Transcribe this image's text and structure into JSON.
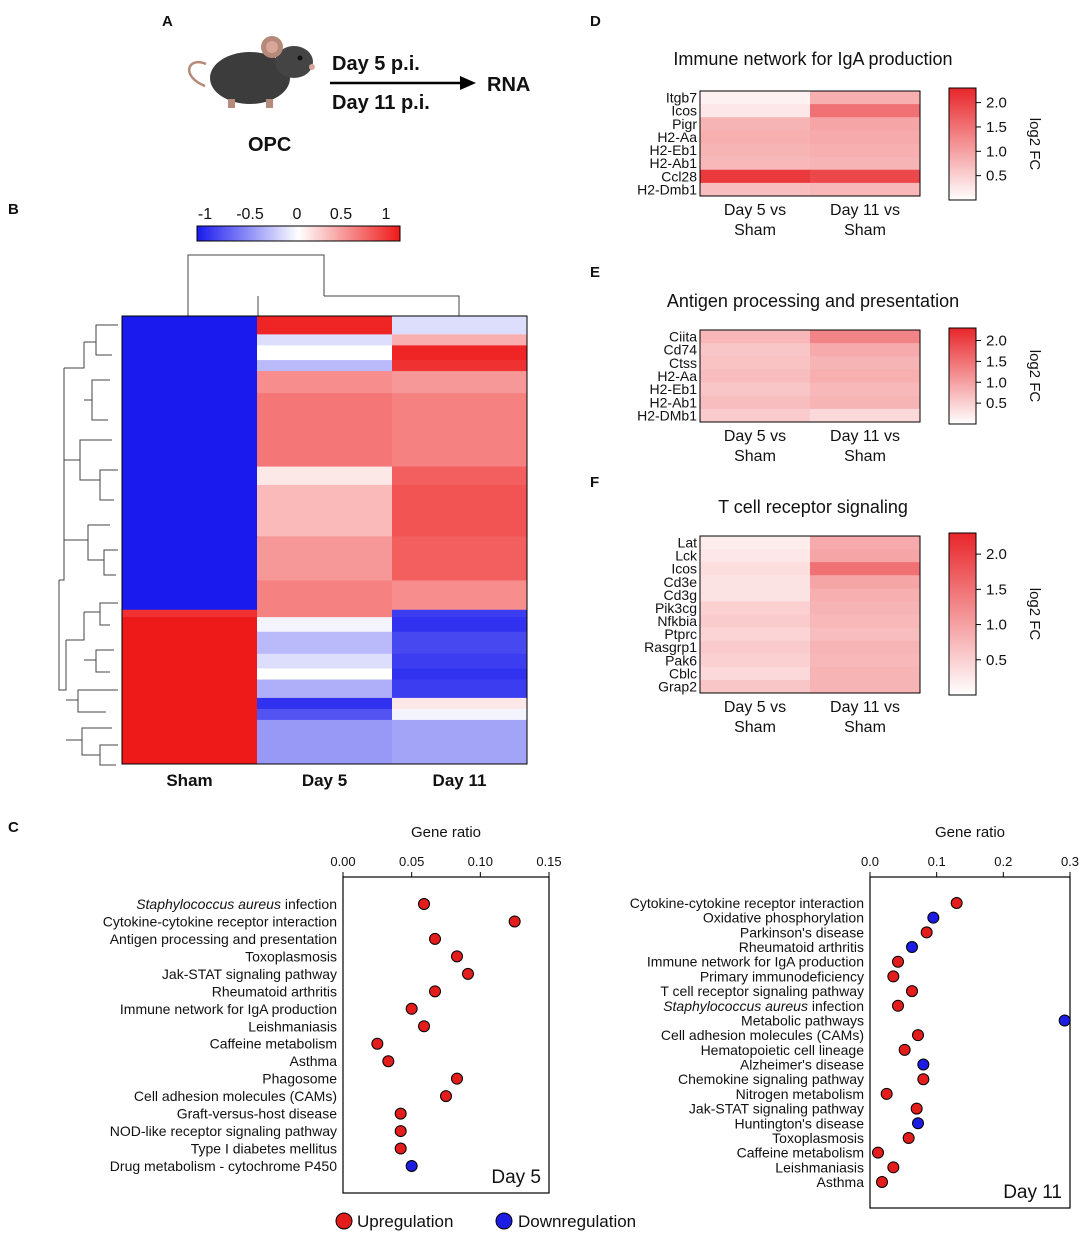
{
  "panels": {
    "A": {
      "letter": "A",
      "timepoint_1": "Day 5 p.i.",
      "timepoint_2": "Day 11 p.i.",
      "target": "RNA",
      "model": "OPC"
    },
    "B": {
      "letter": "B",
      "colorbar_ticks": [
        "-1",
        "-0.5",
        "0",
        "0.5",
        "1"
      ],
      "colorbar_range": [
        -1,
        1
      ]
    },
    "C": {
      "letter": "C"
    },
    "D": {
      "letter": "D"
    },
    "E": {
      "letter": "E"
    },
    "F": {
      "letter": "F"
    }
  },
  "colors": {
    "up": "#e31c1c",
    "down": "#1c1ce3",
    "heat_high": "#e8262a",
    "heat_low": "#ffffff",
    "scale_neg": "#1a1aee",
    "scale_pos": "#ee1a1a"
  },
  "chart_data": [
    {
      "id": "B",
      "type": "heatmap",
      "title": "",
      "columns": [
        "Sham",
        "Day 5",
        "Day 11"
      ],
      "scale": [
        -1,
        1
      ],
      "row_blocks": [
        {
          "rows": 5,
          "values": [
            -1,
            0.95,
            -0.15
          ]
        },
        {
          "rows": 3,
          "values": [
            -1,
            -0.15,
            0.35
          ]
        },
        {
          "rows": 4,
          "values": [
            -1,
            0.0,
            0.95
          ]
        },
        {
          "rows": 3,
          "values": [
            -1,
            -0.3,
            0.9
          ]
        },
        {
          "rows": 6,
          "values": [
            -1,
            0.5,
            0.45
          ]
        },
        {
          "rows": 20,
          "values": [
            -1,
            0.6,
            0.55
          ]
        },
        {
          "rows": 5,
          "values": [
            -1,
            0.1,
            0.7
          ]
        },
        {
          "rows": 14,
          "values": [
            -1,
            0.3,
            0.75
          ]
        },
        {
          "rows": 12,
          "values": [
            -1,
            0.45,
            0.7
          ]
        },
        {
          "rows": 8,
          "values": [
            -1,
            0.55,
            0.5
          ]
        },
        {
          "rows": 2,
          "values": [
            0.9,
            0.55,
            -0.85
          ]
        },
        {
          "rows": 4,
          "values": [
            1,
            -0.05,
            -0.9
          ]
        },
        {
          "rows": 6,
          "values": [
            1,
            -0.3,
            -0.8
          ]
        },
        {
          "rows": 4,
          "values": [
            1,
            -0.15,
            -0.85
          ]
        },
        {
          "rows": 3,
          "values": [
            1,
            0.0,
            -0.9
          ]
        },
        {
          "rows": 5,
          "values": [
            1,
            -0.35,
            -0.85
          ]
        },
        {
          "rows": 3,
          "values": [
            1,
            -0.9,
            0.1
          ]
        },
        {
          "rows": 3,
          "values": [
            1,
            -0.75,
            -0.05
          ]
        },
        {
          "rows": 12,
          "values": [
            1,
            -0.45,
            -0.4
          ]
        }
      ]
    },
    {
      "id": "C-left",
      "type": "scatter",
      "xlabel": "Gene ratio",
      "xlim": [
        0,
        0.15
      ],
      "xticks": [
        "0.00",
        "0.05",
        "0.10",
        "0.15"
      ],
      "label": "Day 5",
      "categories": [
        "Staphylococcus aureus infection",
        "Cytokine-cytokine receptor interaction",
        "Antigen processing and presentation",
        "Toxoplasmosis",
        "Jak-STAT signaling pathway",
        "Rheumatoid arthritis",
        "Immune network for IgA production",
        "Leishmaniasis",
        "Caffeine metabolism",
        "Asthma",
        "Phagosome",
        "Cell adhesion molecules (CAMs)",
        "Graft-versus-host disease",
        "NOD-like receptor signaling pathway",
        "Type I diabetes mellitus",
        "Drug metabolism - cytochrome P450"
      ],
      "values": [
        0.059,
        0.125,
        0.067,
        0.083,
        0.091,
        0.067,
        0.05,
        0.059,
        0.025,
        0.033,
        0.083,
        0.075,
        0.042,
        0.042,
        0.042,
        0.05
      ],
      "direction": [
        "up",
        "up",
        "up",
        "up",
        "up",
        "up",
        "up",
        "up",
        "up",
        "up",
        "up",
        "up",
        "up",
        "up",
        "up",
        "down"
      ]
    },
    {
      "id": "C-right",
      "type": "scatter",
      "xlabel": "Gene ratio",
      "xlim": [
        0,
        0.3
      ],
      "xticks": [
        "0.0",
        "0.1",
        "0.2",
        "0.3"
      ],
      "label": "Day 11",
      "categories": [
        "Cytokine-cytokine receptor interaction",
        "Oxidative phosphorylation",
        "Parkinson's disease",
        "Rheumatoid arthritis",
        "Immune network for IgA production",
        "Primary immunodeficiency",
        "T cell receptor signaling pathway",
        "Staphylococcus aureus infection",
        "Metabolic pathways",
        "Cell adhesion molecules (CAMs)",
        "Hematopoietic cell lineage",
        "Alzheimer's disease",
        "Chemokine signaling pathway",
        "Nitrogen metabolism",
        "Jak-STAT signaling pathway",
        "Huntington's disease",
        "Toxoplasmosis",
        "Caffeine metabolism",
        "Leishmaniasis",
        "Asthma"
      ],
      "values": [
        0.13,
        0.095,
        0.085,
        0.063,
        0.042,
        0.035,
        0.063,
        0.042,
        0.292,
        0.072,
        0.052,
        0.08,
        0.08,
        0.025,
        0.07,
        0.072,
        0.058,
        0.012,
        0.035,
        0.018
      ],
      "direction": [
        "up",
        "down",
        "up",
        "down",
        "up",
        "up",
        "up",
        "up",
        "down",
        "up",
        "up",
        "down",
        "up",
        "up",
        "up",
        "down",
        "up",
        "up",
        "up",
        "up"
      ]
    },
    {
      "id": "D",
      "type": "heatmap",
      "title": "Immune network for IgA production",
      "rows": [
        "Itgb7",
        "Icos",
        "Pigr",
        "H2-Aa",
        "H2-Eb1",
        "H2-Ab1",
        "Ccl28",
        "H2-Dmb1"
      ],
      "cols": [
        "Day 5 vs\nSham",
        "Day 11 vs\nSham"
      ],
      "values": [
        [
          0.15,
          0.85
        ],
        [
          0.25,
          1.5
        ],
        [
          0.8,
          0.95
        ],
        [
          0.85,
          0.9
        ],
        [
          0.8,
          0.85
        ],
        [
          0.75,
          0.8
        ],
        [
          2.1,
          1.95
        ],
        [
          0.7,
          0.75
        ]
      ],
      "colorbar_label": "log2 FC",
      "colorbar_ticks": [
        "2.0",
        "1.5",
        "1.0",
        "0.5"
      ],
      "zlim": [
        0,
        2.3
      ]
    },
    {
      "id": "E",
      "type": "heatmap",
      "title": "Antigen processing and presentation",
      "rows": [
        "Ciita",
        "Cd74",
        "Ctss",
        "H2-Aa",
        "H2-Eb1",
        "H2-Ab1",
        "H2-DMb1"
      ],
      "cols": [
        "Day 5 vs\nSham",
        "Day 11 vs\nSham"
      ],
      "values": [
        [
          0.75,
          1.3
        ],
        [
          0.6,
          0.9
        ],
        [
          0.65,
          0.8
        ],
        [
          0.7,
          0.85
        ],
        [
          0.6,
          0.75
        ],
        [
          0.7,
          0.8
        ],
        [
          0.55,
          0.4
        ]
      ],
      "colorbar_label": "log2 FC",
      "colorbar_ticks": [
        "2.0",
        "1.5",
        "1.0",
        "0.5"
      ],
      "zlim": [
        0,
        2.3
      ]
    },
    {
      "id": "F",
      "type": "heatmap",
      "title": "T cell receptor signaling",
      "rows": [
        "Lat",
        "Lck",
        "Icos",
        "Cd3e",
        "Cd3g",
        "Pik3cg",
        "Nfkbia",
        "Ptprc",
        "Rasgrp1",
        "Pak6",
        "Cblc",
        "Grap2"
      ],
      "cols": [
        "Day 5 vs\nSham",
        "Day 11 vs\nSham"
      ],
      "values": [
        [
          0.2,
          0.9
        ],
        [
          0.25,
          0.95
        ],
        [
          0.35,
          1.5
        ],
        [
          0.3,
          0.95
        ],
        [
          0.3,
          0.85
        ],
        [
          0.5,
          0.8
        ],
        [
          0.55,
          0.75
        ],
        [
          0.45,
          0.7
        ],
        [
          0.55,
          0.8
        ],
        [
          0.5,
          0.75
        ],
        [
          0.4,
          0.8
        ],
        [
          0.6,
          0.8
        ]
      ],
      "colorbar_label": "log2 FC",
      "colorbar_ticks": [
        "2.0",
        "1.5",
        "1.0",
        "0.5"
      ],
      "zlim": [
        0,
        2.3
      ]
    }
  ],
  "legend": {
    "up_label": "Upregulation",
    "down_label": "Downregulation"
  }
}
